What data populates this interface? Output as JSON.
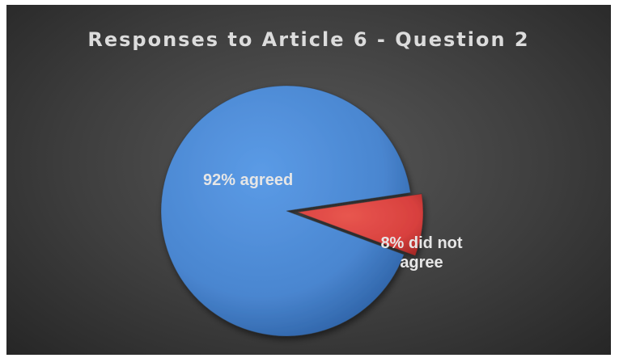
{
  "chart_data": {
    "type": "pie",
    "title": "Responses to Article 6 - Question 2",
    "slices": [
      {
        "label": "agreed",
        "value": 92,
        "display_label": "92% agreed",
        "color": "#4a86d0",
        "exploded": false
      },
      {
        "label": "did not agree",
        "value": 8,
        "display_label": "8% did not agree",
        "display_lines": [
          "8% did not",
          "agree"
        ],
        "color": "#d8403e",
        "exploded": true
      }
    ],
    "legend": "none",
    "style": "3d-shaded"
  },
  "background_color": "#3e3e3e"
}
